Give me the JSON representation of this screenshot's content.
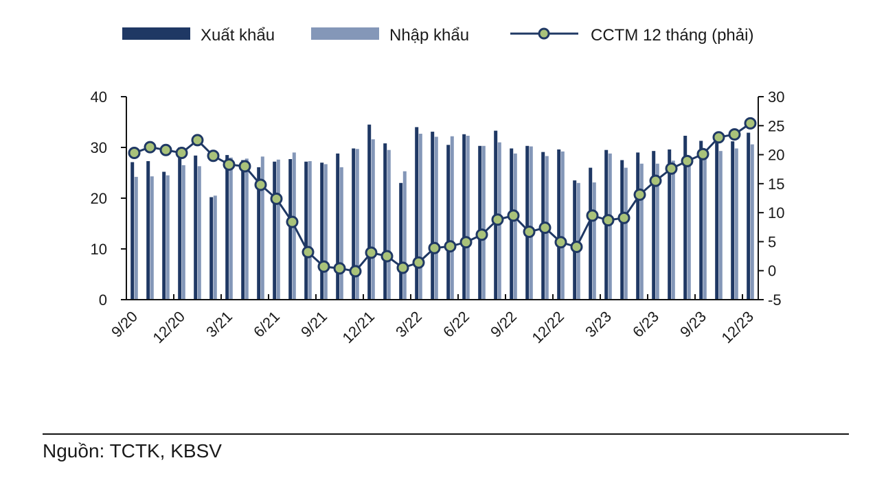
{
  "legend": {
    "export_label": "Xuất khẩu",
    "import_label": "Nhập khẩu",
    "balance_label": "CCTM 12 tháng (phải)"
  },
  "colors": {
    "export": "#1f3864",
    "import": "#8497b8",
    "balance_line": "#1f3864",
    "balance_marker": "#a9c27a",
    "axis": "#111111"
  },
  "footer": {
    "source": "Nguồn: TCTK, KBSV"
  },
  "chart_data": {
    "type": "bar",
    "categories": [
      "9/20",
      "10/20",
      "11/20",
      "12/20",
      "1/21",
      "2/21",
      "3/21",
      "4/21",
      "5/21",
      "6/21",
      "7/21",
      "8/21",
      "9/21",
      "10/21",
      "11/21",
      "12/21",
      "1/22",
      "2/22",
      "3/22",
      "4/22",
      "5/22",
      "6/22",
      "7/22",
      "8/22",
      "9/22",
      "10/22",
      "11/22",
      "12/22",
      "1/23",
      "2/23",
      "3/23",
      "4/23",
      "5/23",
      "6/23",
      "7/23",
      "8/23",
      "9/23",
      "10/23",
      "11/23",
      "12/23"
    ],
    "tick_labels": [
      "9/20",
      "12/20",
      "3/21",
      "6/21",
      "9/21",
      "12/21",
      "3/22",
      "6/22",
      "9/22",
      "12/22",
      "3/23",
      "6/23",
      "9/23",
      "12/23"
    ],
    "series": [
      {
        "name": "Xuất khẩu",
        "axis": "left",
        "type": "bar",
        "values": [
          27.1,
          27.3,
          25.2,
          30.0,
          28.4,
          20.2,
          28.5,
          27.5,
          26.1,
          27.2,
          27.7,
          27.2,
          27.0,
          28.8,
          29.8,
          34.5,
          30.8,
          23.0,
          34.0,
          33.1,
          30.5,
          32.6,
          30.3,
          33.3,
          29.8,
          30.3,
          29.1,
          29.6,
          23.5,
          26.0,
          29.5,
          27.5,
          29.0,
          29.3,
          29.6,
          32.3,
          31.3,
          32.1,
          31.2,
          32.9
        ]
      },
      {
        "name": "Nhập khẩu",
        "axis": "left",
        "type": "bar",
        "values": [
          24.2,
          24.3,
          24.5,
          26.5,
          26.3,
          20.5,
          28.0,
          27.8,
          28.2,
          27.6,
          29.0,
          27.3,
          26.7,
          26.1,
          29.7,
          31.6,
          29.5,
          25.3,
          32.7,
          32.1,
          32.2,
          32.3,
          30.3,
          31.0,
          28.8,
          30.2,
          28.3,
          29.2,
          23.0,
          23.1,
          28.8,
          26.0,
          26.8,
          26.8,
          27.4,
          27.3,
          27.7,
          29.3,
          29.8,
          30.6
        ]
      },
      {
        "name": "CCTM 12 tháng (phải)",
        "axis": "right",
        "type": "line",
        "values": [
          20.3,
          21.3,
          20.8,
          20.3,
          22.5,
          19.8,
          18.3,
          18.0,
          14.8,
          12.4,
          8.4,
          3.2,
          0.7,
          0.4,
          -0.1,
          3.1,
          2.5,
          0.5,
          1.4,
          3.9,
          4.2,
          4.9,
          6.2,
          8.8,
          9.5,
          6.7,
          7.4,
          4.9,
          4.1,
          9.5,
          8.7,
          9.1,
          13.1,
          15.5,
          17.6,
          18.9,
          20.1,
          23.0,
          23.5,
          25.4
        ]
      }
    ],
    "ylim_left": [
      0,
      40
    ],
    "yticks_left": [
      0,
      10,
      20,
      30,
      40
    ],
    "ylim_right": [
      -5,
      30
    ],
    "yticks_right": [
      -5,
      0,
      5,
      10,
      15,
      20,
      25,
      30
    ],
    "legend_position": "top"
  }
}
